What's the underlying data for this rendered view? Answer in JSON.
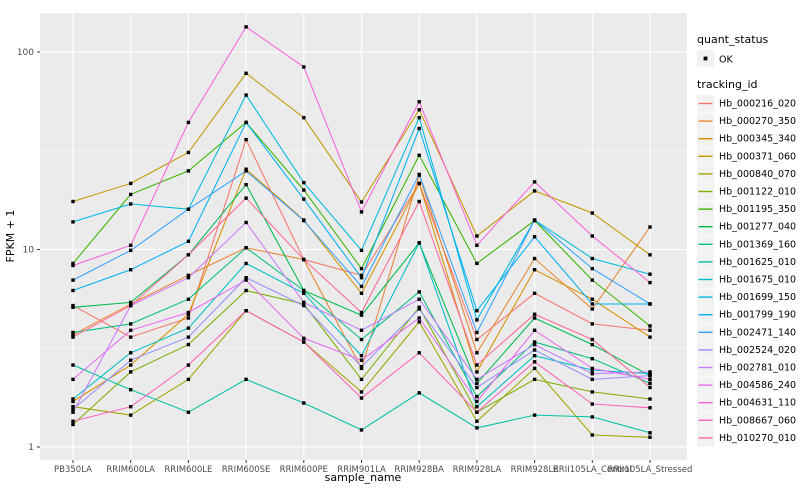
{
  "figure": {
    "y_axis_title": "FPKM + 1",
    "x_axis_title": "sample_name",
    "background": "#FFFFFF",
    "panel_background": "#EBEBEB",
    "gridline_color": "#FFFFFF",
    "tick_label_color": "#4D4D4D",
    "point_color": "#000000"
  },
  "legend": {
    "quant_status_title": "quant_status",
    "quant_status_items": [
      {
        "label": "OK",
        "symbol": "black-point"
      }
    ],
    "tracking_id_title": "tracking_id",
    "key_background": "#F2F2F2"
  },
  "chart_data": {
    "type": "line",
    "title": "",
    "xlabel": "sample_name",
    "ylabel": "FPKM + 1",
    "y_scale": "log10",
    "ylim": [
      0.93,
      160
    ],
    "y_ticks": [
      1,
      10,
      100
    ],
    "y_tick_labels": [
      "1",
      "10",
      "100"
    ],
    "y_minor_ticks": [
      3.162,
      31.62
    ],
    "grid": true,
    "legend_position": "right",
    "marker": "small solid black point (quant_status = OK)",
    "categories": [
      "PB350LA",
      "RRIM600LA",
      "RRIM600LE",
      "RRIM600SE",
      "RRIM600PE",
      "RRIM901LA",
      "RRIM928BA",
      "RRIM928LA",
      "RRIM928LE",
      "RRII105LA_Control",
      "RRII105LA_Stressed"
    ],
    "series": [
      {
        "name": "Hb_000216_020",
        "color": "#F8766D",
        "values": [
          5.2,
          3.6,
          4.5,
          36,
          8.9,
          7.4,
          21.6,
          3.5,
          6.0,
          4.2,
          3.9
        ]
      },
      {
        "name": "Hb_000270_350",
        "color": "#EA8331",
        "values": [
          3.7,
          5.3,
          7.4,
          10.2,
          8.9,
          2.5,
          23.8,
          3.0,
          9.0,
          5.0,
          13.0
        ]
      },
      {
        "name": "Hb_000345_340",
        "color": "#D89000",
        "values": [
          1.7,
          2.6,
          4.7,
          25.5,
          14.1,
          6.0,
          21.6,
          2.4,
          7.9,
          5.6,
          3.6
        ]
      },
      {
        "name": "Hb_000371_060",
        "color": "#C09B00",
        "values": [
          17.5,
          21.6,
          31.0,
          78,
          46.5,
          17.4,
          51,
          11.7,
          19.8,
          15.3,
          9.4
        ]
      },
      {
        "name": "Hb_000840_070",
        "color": "#A3A500",
        "values": [
          1.6,
          1.45,
          2.2,
          4.9,
          3.4,
          1.9,
          4.3,
          1.35,
          2.5,
          1.15,
          1.12
        ]
      },
      {
        "name": "Hb_001122_010",
        "color": "#7CAE00",
        "values": [
          1.3,
          2.4,
          3.3,
          6.2,
          5.3,
          2.2,
          5.1,
          1.5,
          2.2,
          1.9,
          1.75
        ]
      },
      {
        "name": "Hb_001195_350",
        "color": "#39B600",
        "values": [
          8.5,
          19,
          25,
          44,
          20,
          8.0,
          30,
          8.5,
          14,
          7.0,
          4.1
        ]
      },
      {
        "name": "Hb_001277_040",
        "color": "#00BB4E",
        "values": [
          5.1,
          5.4,
          9.4,
          21.3,
          6.2,
          4.65,
          10.8,
          2.1,
          4.5,
          3.3,
          2.3
        ]
      },
      {
        "name": "Hb_001369_160",
        "color": "#00BF7D",
        "values": [
          3.8,
          4.2,
          5.6,
          10.2,
          6.2,
          3.5,
          6.1,
          1.8,
          3.4,
          2.8,
          2.1
        ]
      },
      {
        "name": "Hb_001625_010",
        "color": "#00C1A3",
        "values": [
          2.6,
          1.95,
          1.5,
          2.2,
          1.67,
          1.22,
          1.88,
          1.25,
          1.45,
          1.42,
          1.18
        ]
      },
      {
        "name": "Hb_001675_010",
        "color": "#00BFC4",
        "values": [
          1.75,
          3.0,
          4.0,
          8.5,
          6.0,
          2.9,
          10.8,
          1.6,
          2.9,
          2.45,
          2.35
        ]
      },
      {
        "name": "Hb_001699_150",
        "color": "#00BAE0",
        "values": [
          13.8,
          17.0,
          16.0,
          60.5,
          21.8,
          9.9,
          46.5,
          4.4,
          14.1,
          9.0,
          7.5
        ]
      },
      {
        "name": "Hb_001799_190",
        "color": "#00B0F6",
        "values": [
          6.2,
          7.9,
          11.0,
          44,
          18,
          7.2,
          41,
          4.9,
          11.6,
          5.3,
          5.3
        ]
      },
      {
        "name": "Hb_002471_140",
        "color": "#35A2FF",
        "values": [
          7.0,
          9.9,
          16,
          25,
          14,
          6.5,
          24,
          3.8,
          14.1,
          8.0,
          5.3
        ]
      },
      {
        "name": "Hb_002524_020",
        "color": "#9590FF",
        "values": [
          1.55,
          2.75,
          3.6,
          7.2,
          5.2,
          2.55,
          5.0,
          2.0,
          3.1,
          2.2,
          2.3
        ]
      },
      {
        "name": "Hb_002781_010",
        "color": "#C77CFF",
        "values": [
          1.5,
          5.2,
          7.2,
          13.7,
          5.4,
          3.9,
          5.6,
          2.2,
          3.3,
          2.35,
          2.4
        ]
      },
      {
        "name": "Hb_004586_240",
        "color": "#E76BF3",
        "values": [
          2.2,
          3.9,
          4.8,
          7.0,
          3.55,
          2.75,
          4.5,
          1.7,
          3.9,
          2.5,
          2.2
        ]
      },
      {
        "name": "Hb_004631_110",
        "color": "#FA62DB",
        "values": [
          8.3,
          10.5,
          44,
          134,
          84,
          15.5,
          56,
          10.5,
          22,
          11.7,
          6.8
        ]
      },
      {
        "name": "Hb_008667_060",
        "color": "#FF62BC",
        "values": [
          1.35,
          1.6,
          2.6,
          4.9,
          3.4,
          1.77,
          3.0,
          1.5,
          2.7,
          1.65,
          1.58
        ]
      },
      {
        "name": "Hb_010270_010",
        "color": "#FF6A98",
        "values": [
          3.6,
          5.2,
          9.4,
          18.2,
          8.9,
          4.8,
          17.5,
          2.6,
          4.7,
          3.5,
          2.0
        ]
      }
    ]
  }
}
